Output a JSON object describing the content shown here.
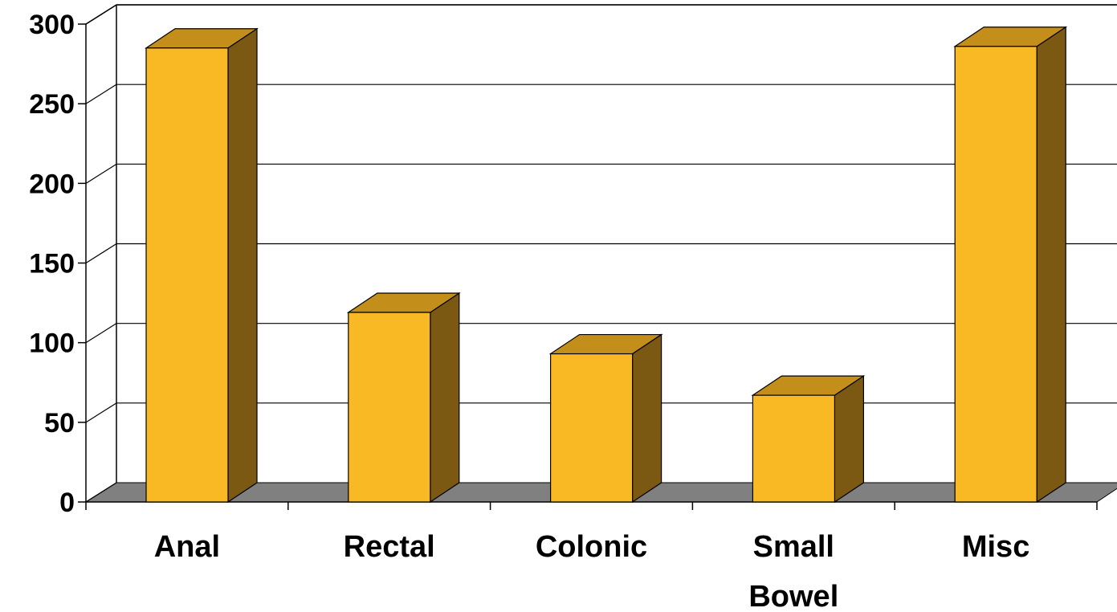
{
  "chart_data": {
    "type": "bar",
    "style": "3d-column",
    "categories": [
      "Anal",
      "Rectal",
      "Colonic",
      "Small Bowel",
      "Misc"
    ],
    "category_label_lines": [
      [
        "Anal"
      ],
      [
        "Rectal"
      ],
      [
        "Colonic"
      ],
      [
        "Small",
        "Bowel"
      ],
      [
        "Misc"
      ]
    ],
    "values": [
      285,
      119,
      93,
      67,
      286
    ],
    "ylim": [
      0,
      300
    ],
    "yticks": [
      "0",
      "50",
      "100",
      "150",
      "200",
      "250",
      "300"
    ],
    "title": "",
    "xlabel": "",
    "ylabel": "",
    "grid": true,
    "legend": "none",
    "colors": {
      "bar_front": "#F9B924",
      "bar_top": "#C48E1B",
      "bar_side": "#7C5913",
      "floor": "#808080",
      "gridline": "#000000"
    }
  }
}
